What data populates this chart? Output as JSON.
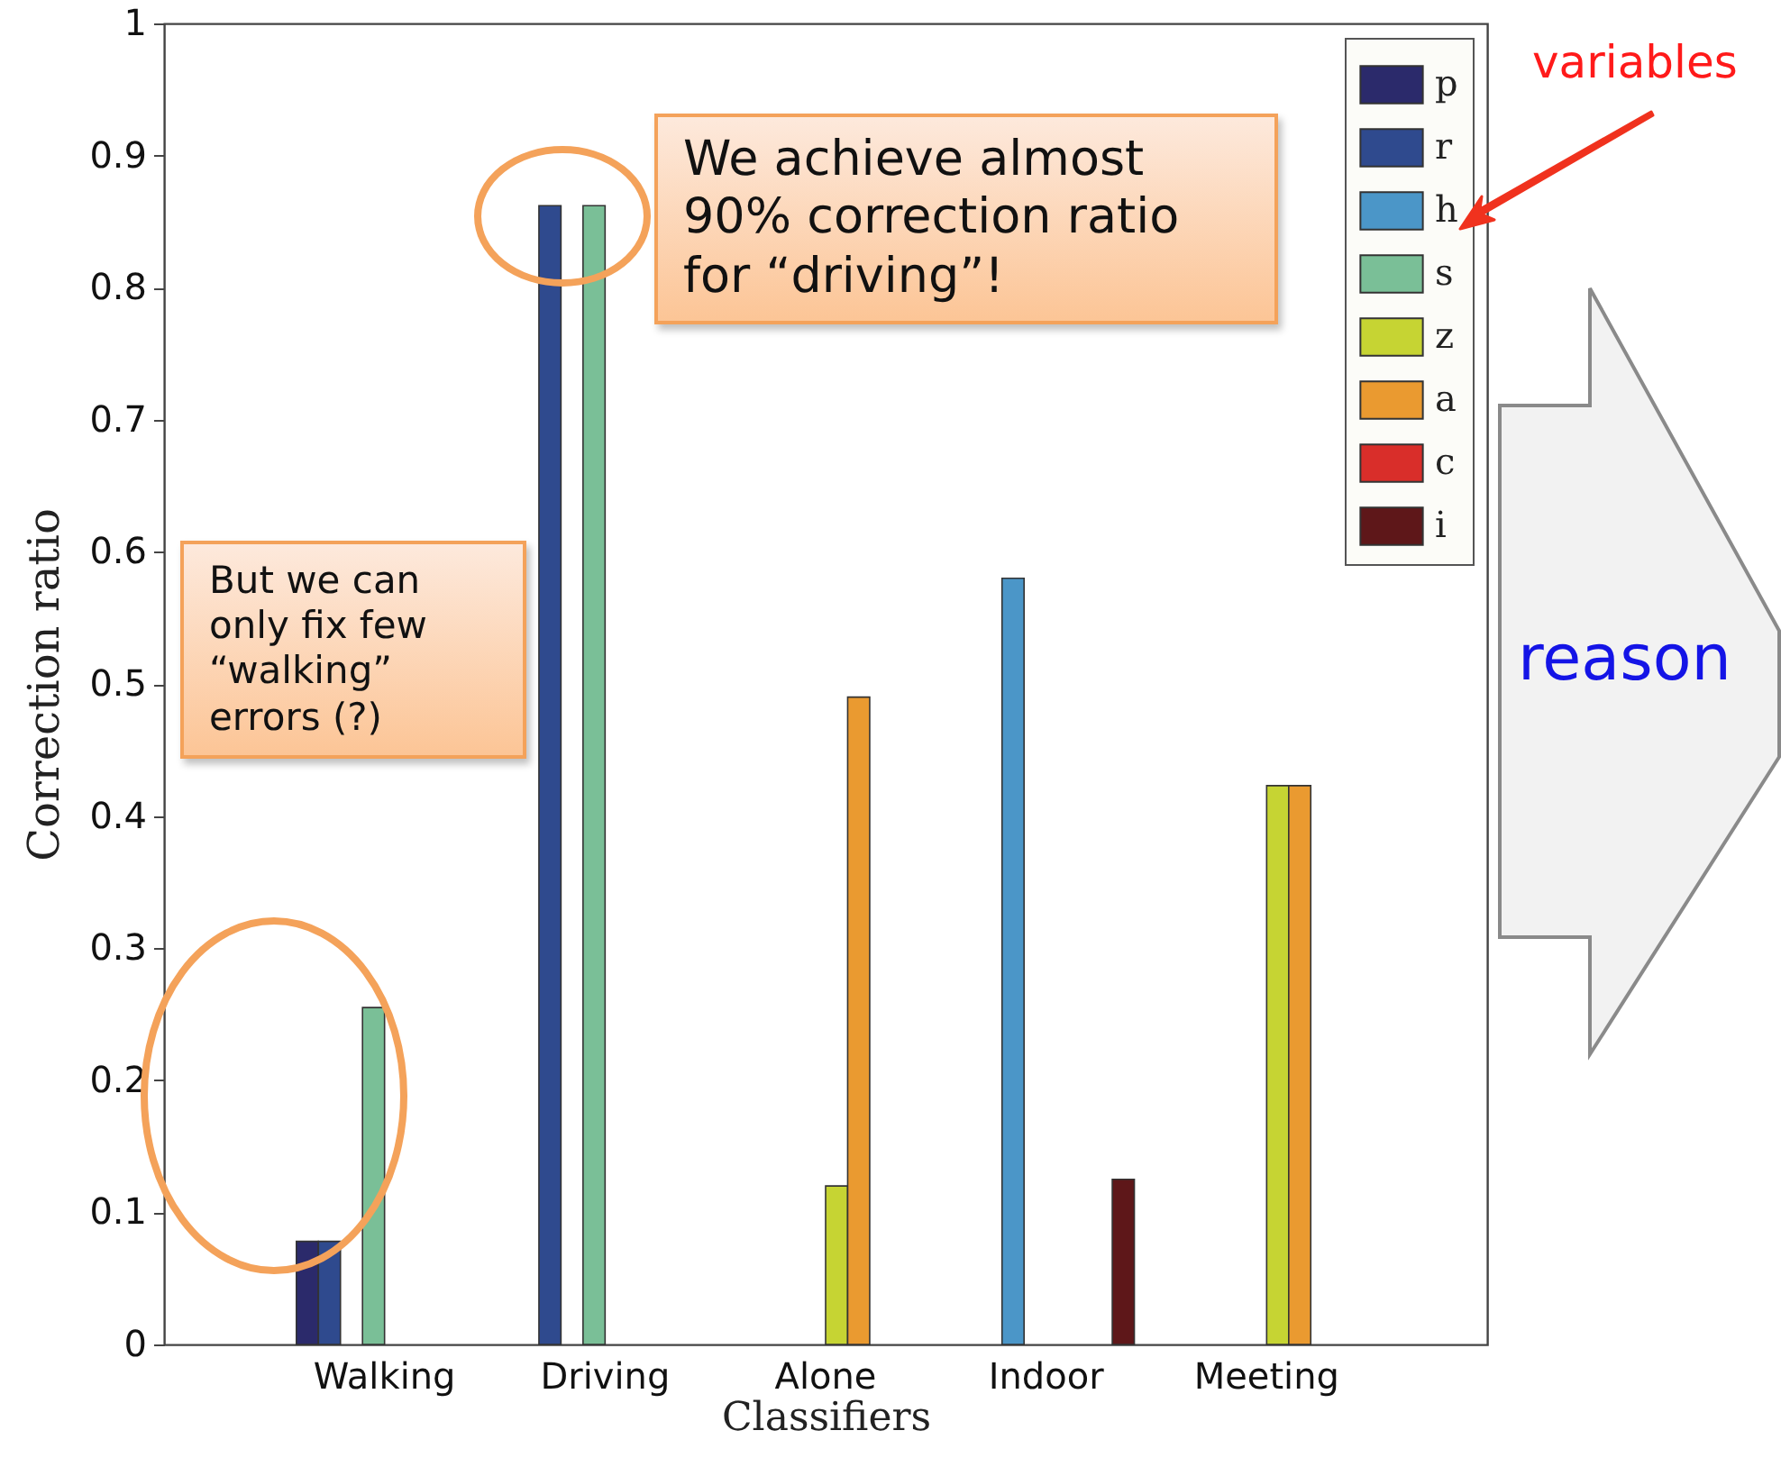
{
  "chart_data": {
    "type": "bar",
    "xlabel": "Classifiers",
    "ylabel": "Correction ratio",
    "categories": [
      "Walking",
      "Driving",
      "Alone",
      "Indoor",
      "Meeting"
    ],
    "series": [
      {
        "name": "p",
        "color": "#2b2a6b",
        "values": [
          0.078,
          null,
          null,
          null,
          null
        ]
      },
      {
        "name": "r",
        "color": "#2f4a8e",
        "values": [
          0.078,
          0.862,
          null,
          null,
          null
        ]
      },
      {
        "name": "h",
        "color": "#4b96c8",
        "values": [
          null,
          null,
          null,
          0.58,
          null
        ]
      },
      {
        "name": "s",
        "color": "#7abf97",
        "values": [
          0.255,
          0.862,
          null,
          null,
          null
        ]
      },
      {
        "name": "z",
        "color": "#c6d433",
        "values": [
          null,
          null,
          0.12,
          null,
          0.423
        ]
      },
      {
        "name": "a",
        "color": "#ea9a30",
        "values": [
          null,
          null,
          0.49,
          null,
          0.423
        ]
      },
      {
        "name": "c",
        "color": "#d92e2a",
        "values": [
          null,
          null,
          null,
          null,
          null
        ]
      },
      {
        "name": "i",
        "color": "#5e1719",
        "values": [
          null,
          null,
          null,
          0.125,
          null
        ]
      }
    ],
    "ylim": [
      0,
      1
    ],
    "yticks": [
      0,
      0.1,
      0.2,
      0.3,
      0.4,
      0.5,
      0.6,
      0.7,
      0.8,
      0.9,
      1
    ],
    "grid": false,
    "legend": "top right",
    "annotations": [
      "We achieve almost 90% correction ratio for “driving”!",
      "But we can only fix few “walking” errors (?)",
      "variables",
      "reason"
    ]
  }
}
